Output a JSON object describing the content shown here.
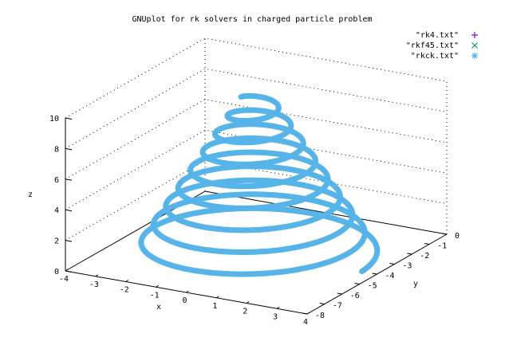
{
  "chart_data": {
    "type": "line",
    "title": "GNUplot for rk solvers in charged particle problem",
    "xlabel": "x",
    "ylabel": "y",
    "zlabel": "z",
    "xlim": [
      -4,
      4
    ],
    "ylim": [
      -8,
      0
    ],
    "zlim": [
      0,
      10
    ],
    "xticks": [
      "-4",
      "-3",
      "-2",
      "-1",
      "0",
      "1",
      "2",
      "3",
      "4"
    ],
    "yticks": [
      "-8",
      "-7",
      "-6",
      "-5",
      "-4",
      "-3",
      "-2",
      "-1",
      "0"
    ],
    "zticks": [
      "0",
      "2",
      "4",
      "6",
      "8",
      "10"
    ],
    "grid": true,
    "legend_position": "top-right",
    "series": [
      {
        "name": "\"rk4.txt\"",
        "marker": "+",
        "color": "#9400d3"
      },
      {
        "name": "\"rkf45.txt\"",
        "marker": "x",
        "color": "#009e73"
      },
      {
        "name": "\"rkck.txt\"",
        "marker": "*",
        "color": "#56b4e9"
      }
    ],
    "trajectory": {
      "description_values": "helix",
      "center": [
        0,
        -4
      ],
      "radius_start": 3.5,
      "radius_end": 0.5,
      "z_start": 0,
      "z_end": 10,
      "turns": 8.5,
      "start_phase_deg": 0
    }
  }
}
